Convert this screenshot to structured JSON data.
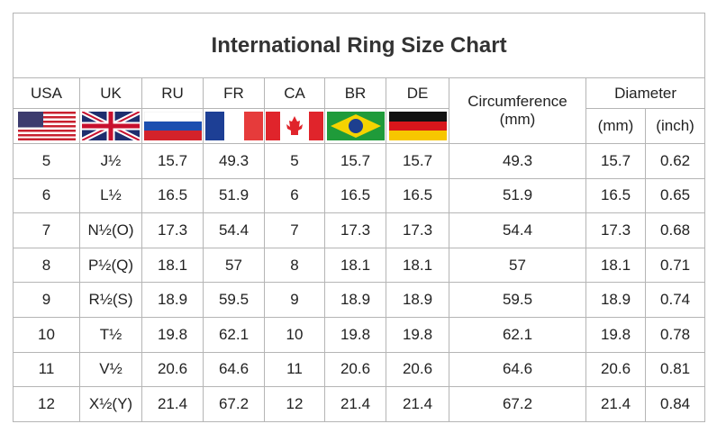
{
  "title": "International Ring Size Chart",
  "columns": [
    "USA",
    "UK",
    "RU",
    "FR",
    "CA",
    "BR",
    "DE",
    "Circumference (mm)",
    "Diameter"
  ],
  "subcolumns": [
    "(mm)",
    "(inch)"
  ],
  "rows": [
    [
      "5",
      "J½",
      "15.7",
      "49.3",
      "5",
      "15.7",
      "15.7",
      "49.3",
      "15.7",
      "0.62"
    ],
    [
      "6",
      "L½",
      "16.5",
      "51.9",
      "6",
      "16.5",
      "16.5",
      "51.9",
      "16.5",
      "0.65"
    ],
    [
      "7",
      "N½(O)",
      "17.3",
      "54.4",
      "7",
      "17.3",
      "17.3",
      "54.4",
      "17.3",
      "0.68"
    ],
    [
      "8",
      "P½(Q)",
      "18.1",
      "57",
      "8",
      "18.1",
      "18.1",
      "57",
      "18.1",
      "0.71"
    ],
    [
      "9",
      "R½(S)",
      "18.9",
      "59.5",
      "9",
      "18.9",
      "18.9",
      "59.5",
      "18.9",
      "0.74"
    ],
    [
      "10",
      "T½",
      "19.8",
      "62.1",
      "10",
      "19.8",
      "19.8",
      "62.1",
      "19.8",
      "0.78"
    ],
    [
      "11",
      "V½",
      "20.6",
      "64.6",
      "11",
      "20.6",
      "20.6",
      "64.6",
      "20.6",
      "0.81"
    ],
    [
      "12",
      "X½(Y)",
      "21.4",
      "67.2",
      "12",
      "21.4",
      "21.4",
      "67.2",
      "21.4",
      "0.84"
    ]
  ]
}
